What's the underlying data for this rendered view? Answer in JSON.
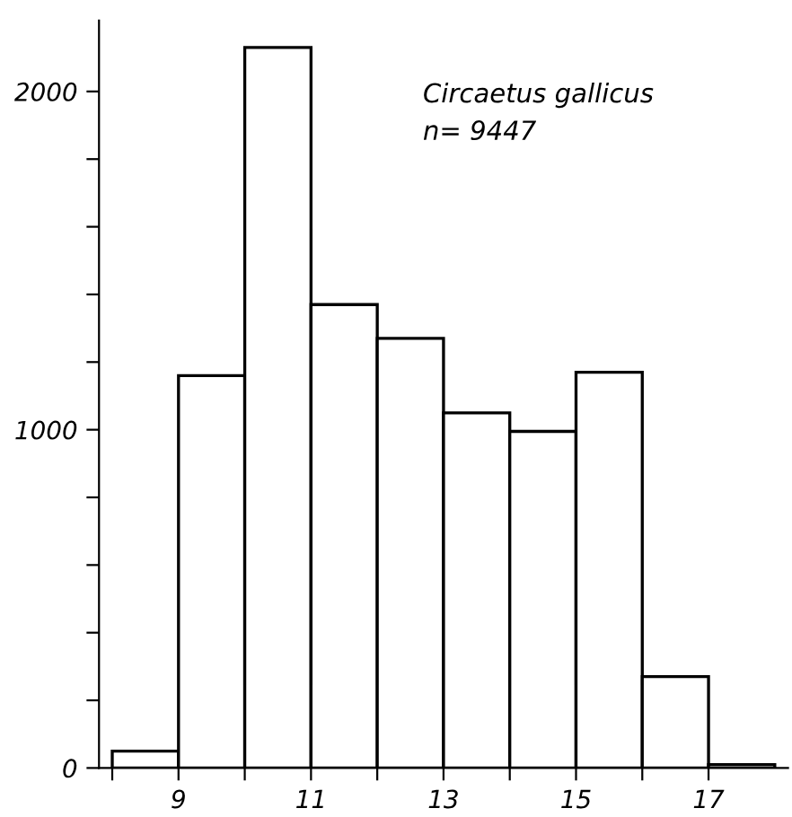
{
  "chart_data": {
    "type": "histogram",
    "bins": [
      8,
      9,
      10,
      11,
      12,
      13,
      14,
      15,
      16,
      17,
      18
    ],
    "values": [
      50,
      1160,
      2130,
      1370,
      1270,
      1050,
      995,
      1170,
      270,
      10
    ],
    "color": "#ffffff",
    "xlim": [
      7.8,
      18.2
    ],
    "xticks": [
      {
        "value": 8,
        "label": null
      },
      9,
      {
        "value": 10,
        "label": null
      },
      11,
      {
        "value": 12,
        "label": null
      },
      13,
      {
        "value": 14,
        "label": null
      },
      15,
      {
        "value": 16,
        "label": null
      },
      17
    ],
    "ylim": [
      0,
      2210
    ],
    "yticks": [
      0,
      {
        "value": 200,
        "label": null
      },
      {
        "value": 400,
        "label": null
      },
      {
        "value": 600,
        "label": null
      },
      {
        "value": 800,
        "label": null
      },
      1000,
      {
        "value": 1200,
        "label": null
      },
      {
        "value": 1400,
        "label": null
      },
      {
        "value": 1600,
        "label": null
      },
      {
        "value": 1800,
        "label": null
      },
      2000
    ],
    "annotations": [
      "Circaetus gallicus",
      "n= 9447"
    ],
    "grid": false,
    "legend": false
  }
}
